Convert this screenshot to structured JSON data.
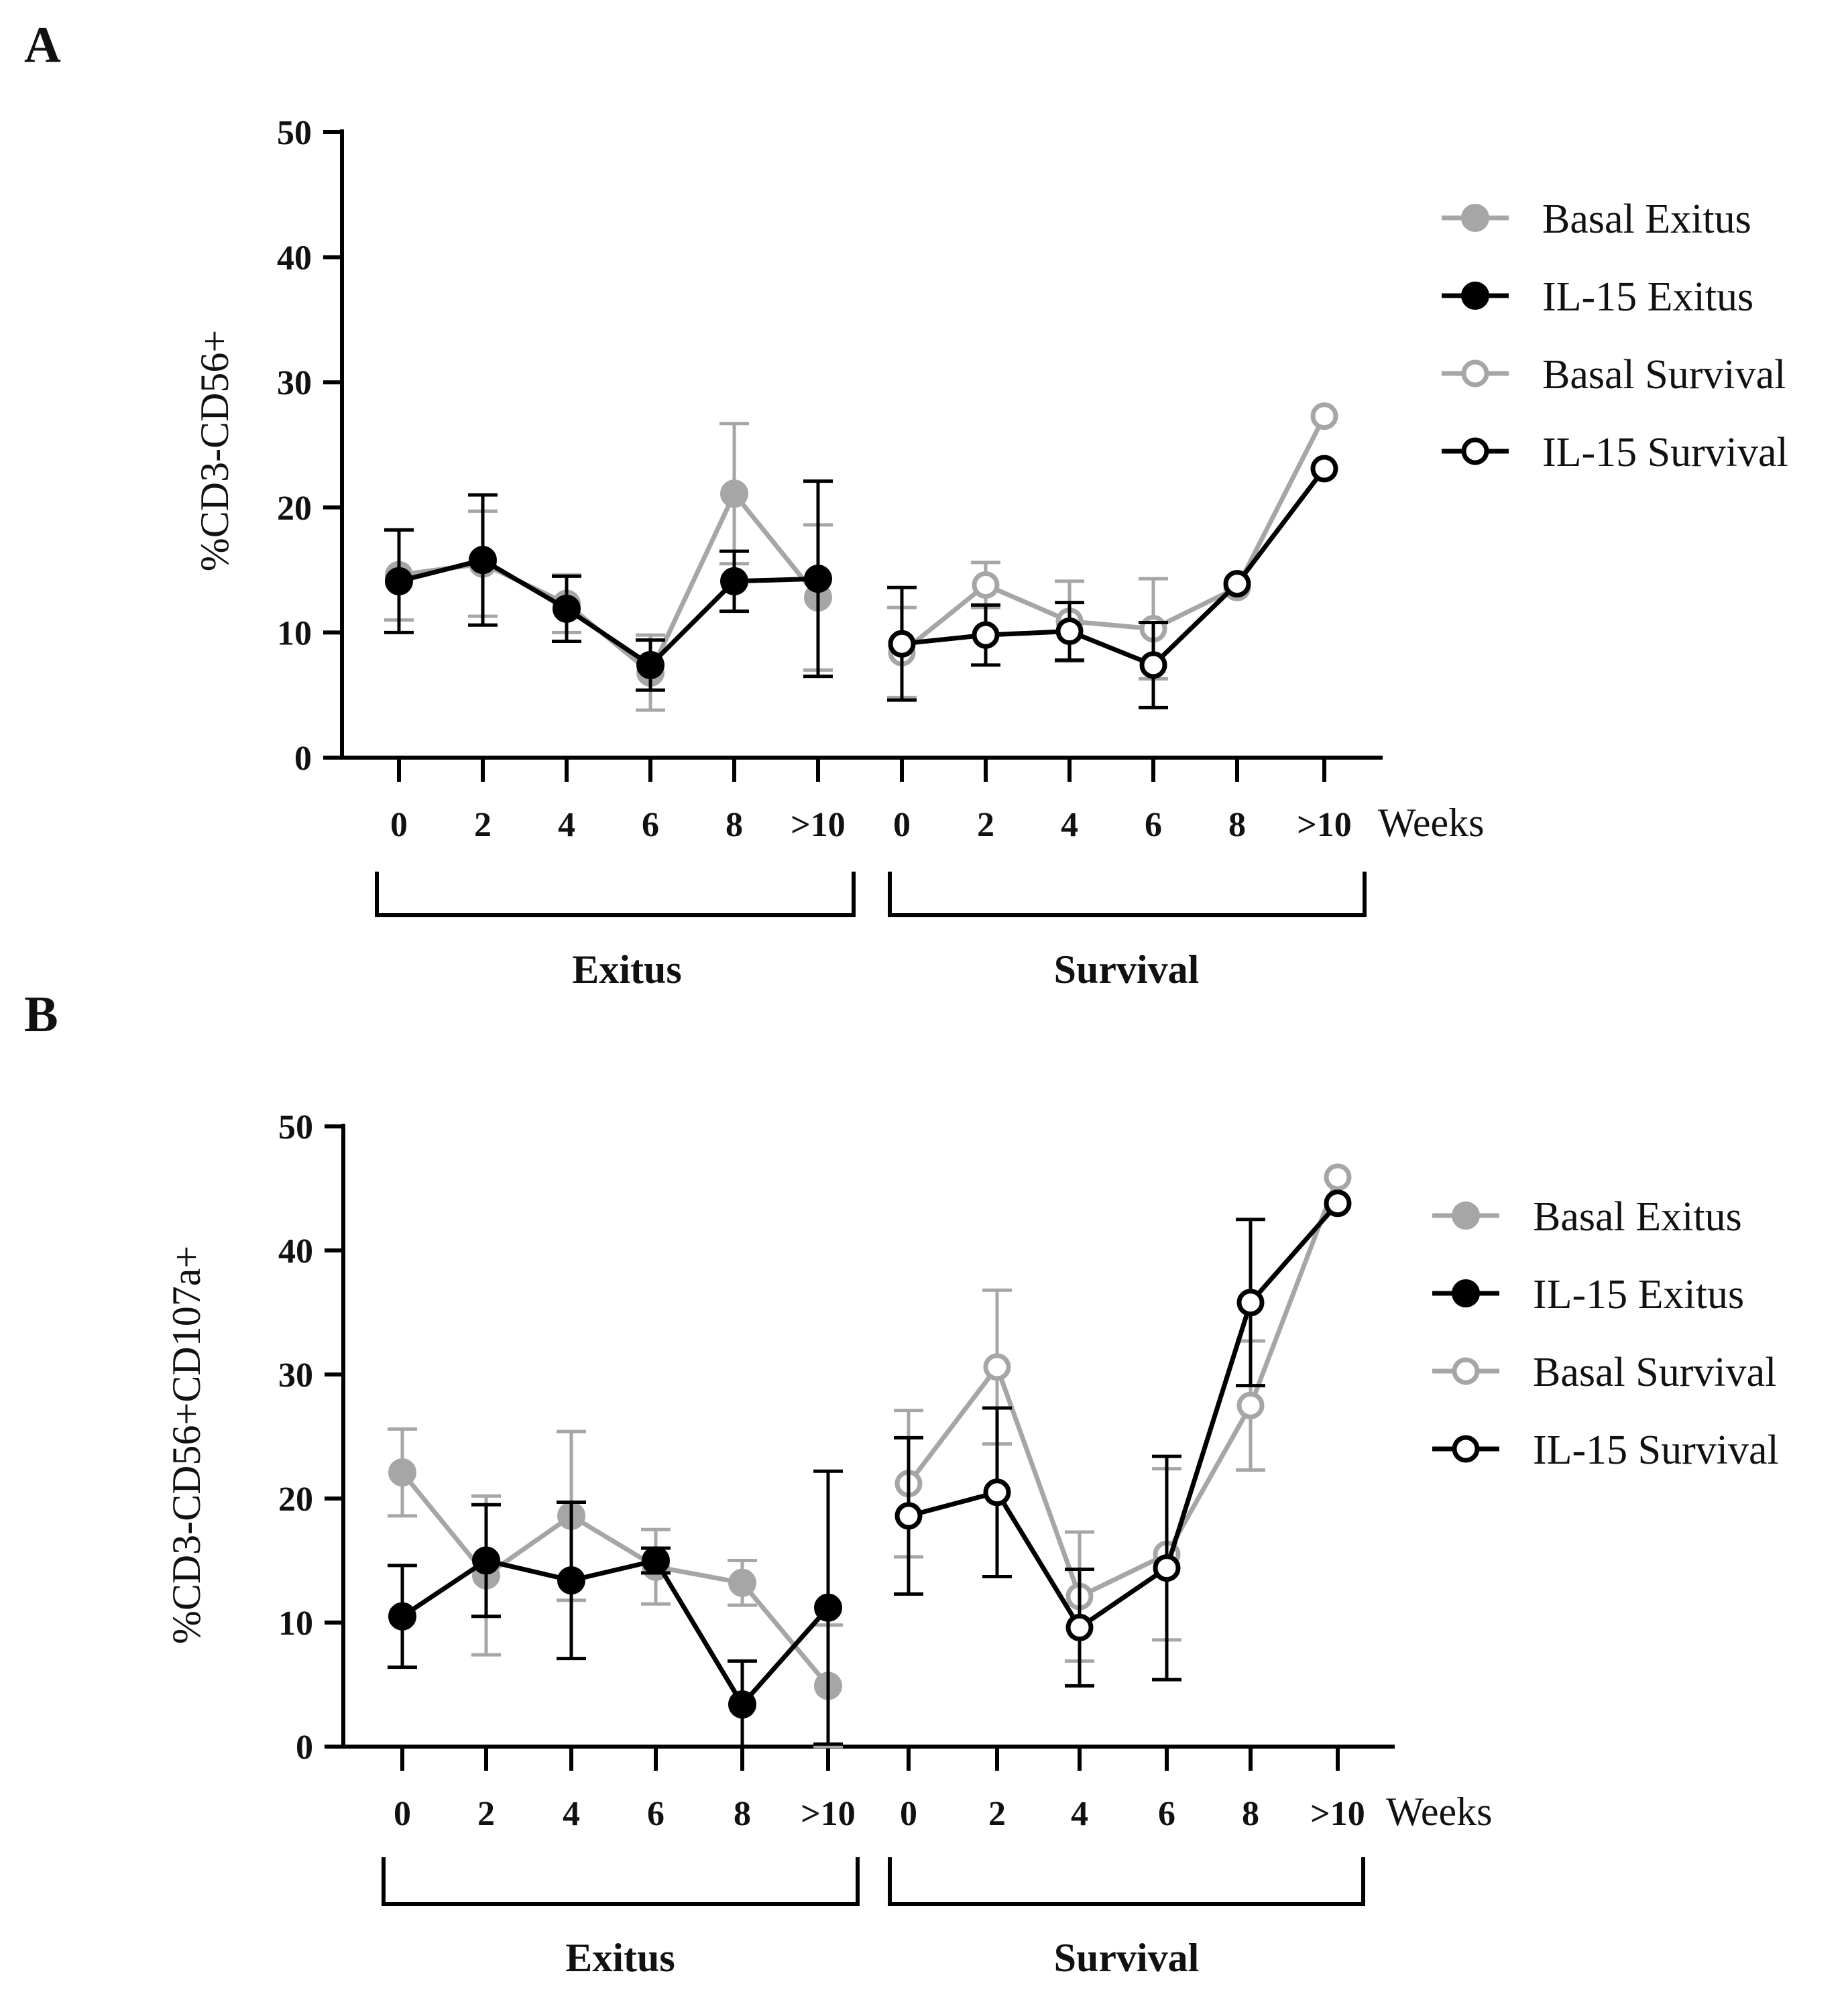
{
  "chart_data": [
    {
      "panel": "A",
      "type": "line",
      "ylabel": "%CD3-CD56+",
      "xlabel": "Weeks",
      "ylim": [
        0,
        50
      ],
      "yticks": [
        "0",
        "10",
        "20",
        "30",
        "40",
        "50"
      ],
      "groups": [
        {
          "label": "Exitus",
          "categories": [
            "0",
            "2",
            "4",
            "6",
            "8",
            ">10"
          ]
        },
        {
          "label": "Survival",
          "categories": [
            "0",
            "2",
            "4",
            "6",
            "8",
            ">10"
          ]
        }
      ],
      "series": [
        {
          "name": "Basal Exitus",
          "group": 0,
          "values": [
            14.6,
            15.5,
            12.3,
            6.8,
            21.1,
            12.8
          ],
          "errors": [
            3.6,
            4.2,
            2.3,
            3.0,
            5.6,
            5.8
          ]
        },
        {
          "name": "IL-15 Exitus",
          "group": 0,
          "values": [
            14.1,
            15.8,
            11.9,
            7.4,
            14.1,
            14.3
          ],
          "errors": [
            4.1,
            5.2,
            2.6,
            2.0,
            2.4,
            7.8
          ]
        },
        {
          "name": "Basal Survival",
          "group": 1,
          "values": [
            8.4,
            13.8,
            10.9,
            10.3,
            13.6,
            27.3
          ],
          "errors": [
            3.6,
            1.8,
            3.2,
            4.0,
            0,
            0
          ]
        },
        {
          "name": "IL-15 Survival",
          "group": 1,
          "values": [
            9.1,
            9.8,
            10.1,
            7.4,
            13.9,
            23.1
          ],
          "errors": [
            4.5,
            2.4,
            2.3,
            3.4,
            0,
            0
          ]
        }
      ]
    },
    {
      "panel": "B",
      "type": "line",
      "ylabel": "%CD3-CD56+CD107a+",
      "xlabel": "Weeks",
      "ylim": [
        0,
        50
      ],
      "yticks": [
        "0",
        "10",
        "20",
        "30",
        "40",
        "50"
      ],
      "groups": [
        {
          "label": "Exitus",
          "categories": [
            "0",
            "2",
            "4",
            "6",
            "8",
            ">10"
          ]
        },
        {
          "label": "Survival",
          "categories": [
            "0",
            "2",
            "4",
            "6",
            "8",
            ">10"
          ]
        }
      ],
      "series": [
        {
          "name": "Basal Exitus",
          "group": 0,
          "values": [
            22.1,
            13.8,
            18.6,
            14.5,
            13.2,
            4.9
          ],
          "errors": [
            3.5,
            6.4,
            6.8,
            3.0,
            1.8,
            4.9
          ]
        },
        {
          "name": "IL-15 Exitus",
          "group": 0,
          "values": [
            10.5,
            15.0,
            13.4,
            15.0,
            3.4,
            11.2
          ],
          "errors": [
            4.1,
            4.5,
            6.3,
            1.0,
            3.5,
            11.0
          ]
        },
        {
          "name": "Basal Survival",
          "group": 1,
          "values": [
            21.2,
            30.6,
            12.1,
            15.5,
            27.5,
            45.9
          ],
          "errors": [
            5.9,
            6.2,
            5.2,
            6.9,
            5.2,
            0
          ]
        },
        {
          "name": "IL-15 Survival",
          "group": 1,
          "values": [
            18.6,
            20.5,
            9.6,
            14.4,
            35.8,
            43.8
          ],
          "errors": [
            6.3,
            6.8,
            4.7,
            9.0,
            6.7,
            0
          ]
        }
      ]
    }
  ],
  "legend": [
    {
      "name": "Basal Exitus",
      "color": "#a6a6a6",
      "filled": true
    },
    {
      "name": "IL-15 Exitus",
      "color": "#000000",
      "filled": true
    },
    {
      "name": "Basal Survival",
      "color": "#a6a6a6",
      "filled": false
    },
    {
      "name": "IL-15 Survival",
      "color": "#000000",
      "filled": false
    }
  ]
}
